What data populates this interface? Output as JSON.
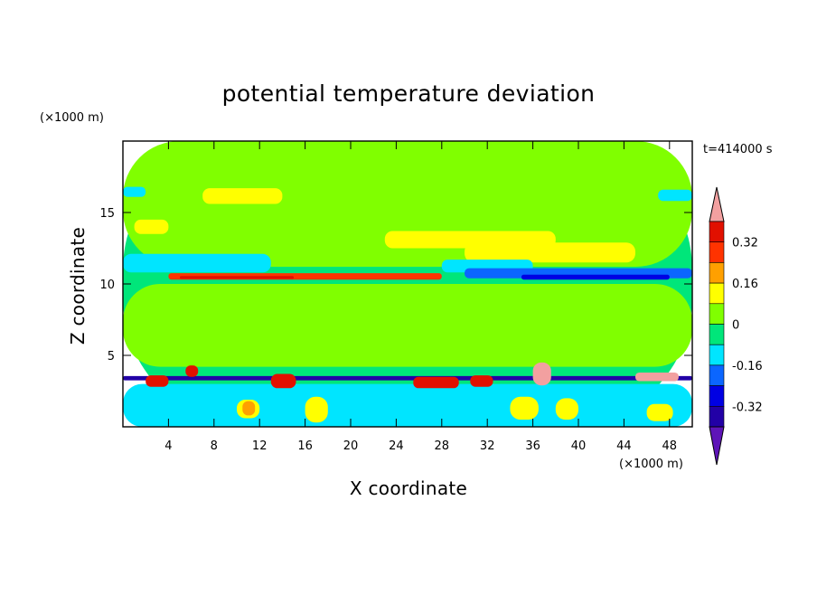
{
  "chart_data": {
    "type": "heatmap",
    "title": "potential temperature deviation",
    "xlabel": "X coordinate",
    "ylabel": "Z coordinate",
    "x_scale_label": "(×1000 m)",
    "y_scale_label": "(×1000 m)",
    "time_label": "t=414000 s",
    "xlim": [
      0,
      50
    ],
    "ylim": [
      0,
      20
    ],
    "x_ticks": [
      4,
      8,
      12,
      16,
      20,
      24,
      28,
      32,
      36,
      40,
      44,
      48
    ],
    "y_ticks": [
      5,
      10,
      15
    ],
    "colorbar": {
      "labels": [
        "0.32",
        "0.16",
        "0",
        "-0.16",
        "-0.32"
      ],
      "label_values": [
        0.32,
        0.16,
        0,
        -0.16,
        -0.32
      ],
      "levels": [
        -0.4,
        -0.32,
        -0.24,
        -0.16,
        -0.08,
        0,
        0.08,
        0.16,
        0.24,
        0.32,
        0.4
      ],
      "colors": [
        "#5e14b8",
        "#2200a6",
        "#0000e3",
        "#0b66ff",
        "#00e5ff",
        "#00e67a",
        "#80ff00",
        "#ffff00",
        "#ffa000",
        "#ff3300",
        "#e11000",
        "#f2a0a0"
      ]
    },
    "regions": [
      {
        "value": -0.05,
        "x": 0,
        "z": 0,
        "w": 50,
        "h": 20
      },
      {
        "value": 0.04,
        "x": 0,
        "z": 11.2,
        "w": 50,
        "h": 8.8
      },
      {
        "value": 0.04,
        "x": 0,
        "z": 4.2,
        "w": 50,
        "h": 5.8
      },
      {
        "value": 0.1,
        "x": 7,
        "z": 15.6,
        "w": 7,
        "h": 1.1
      },
      {
        "value": 0.1,
        "x": 23,
        "z": 12.5,
        "w": 15,
        "h": 1.2
      },
      {
        "value": 0.1,
        "x": 30,
        "z": 11.5,
        "w": 15,
        "h": 1.4
      },
      {
        "value": 0.1,
        "x": 1,
        "z": 13.5,
        "w": 3,
        "h": 1.0
      },
      {
        "value": -0.1,
        "x": 0,
        "z": 16.1,
        "w": 2,
        "h": 0.7
      },
      {
        "value": -0.1,
        "x": 47,
        "z": 15.8,
        "w": 3,
        "h": 0.8
      },
      {
        "value": -0.1,
        "x": 0,
        "z": 10.8,
        "w": 13,
        "h": 1.3
      },
      {
        "value": -0.1,
        "x": 28,
        "z": 10.8,
        "w": 8,
        "h": 0.9
      },
      {
        "value": -0.2,
        "x": 30,
        "z": 10.4,
        "w": 20,
        "h": 0.7
      },
      {
        "value": -0.3,
        "x": 35,
        "z": 10.3,
        "w": 13,
        "h": 0.35
      },
      {
        "value": 0.25,
        "x": 4,
        "z": 10.3,
        "w": 24,
        "h": 0.45
      },
      {
        "value": 0.35,
        "x": 5,
        "z": 10.35,
        "w": 10,
        "h": 0.2
      },
      {
        "value": -0.1,
        "x": 0,
        "z": 0,
        "w": 50,
        "h": 3.0
      },
      {
        "value": -0.35,
        "x": 0,
        "z": 3.25,
        "w": 50,
        "h": 0.3
      },
      {
        "value": 0.35,
        "x": 2,
        "z": 2.8,
        "w": 2,
        "h": 0.8
      },
      {
        "value": 0.35,
        "x": 5.5,
        "z": 3.5,
        "w": 1.1,
        "h": 0.8
      },
      {
        "value": 0.35,
        "x": 13,
        "z": 2.7,
        "w": 2.2,
        "h": 1.0
      },
      {
        "value": 0.35,
        "x": 25.5,
        "z": 2.7,
        "w": 4,
        "h": 0.8
      },
      {
        "value": 0.35,
        "x": 30.5,
        "z": 2.8,
        "w": 2,
        "h": 0.8
      },
      {
        "value": 0.4,
        "x": 36,
        "z": 2.9,
        "w": 1.6,
        "h": 1.6
      },
      {
        "value": 0.4,
        "x": 45,
        "z": 3.2,
        "w": 3.8,
        "h": 0.6
      },
      {
        "value": 0.1,
        "x": 10,
        "z": 0.6,
        "w": 2,
        "h": 1.3
      },
      {
        "value": 0.2,
        "x": 10.5,
        "z": 0.8,
        "w": 1.1,
        "h": 1.0
      },
      {
        "value": 0.1,
        "x": 16,
        "z": 0.3,
        "w": 2,
        "h": 1.8
      },
      {
        "value": 0.1,
        "x": 34,
        "z": 0.5,
        "w": 2.5,
        "h": 1.6
      },
      {
        "value": 0.1,
        "x": 38,
        "z": 0.5,
        "w": 2,
        "h": 1.5
      },
      {
        "value": 0.1,
        "x": 46,
        "z": 0.4,
        "w": 2.3,
        "h": 1.2
      }
    ]
  }
}
